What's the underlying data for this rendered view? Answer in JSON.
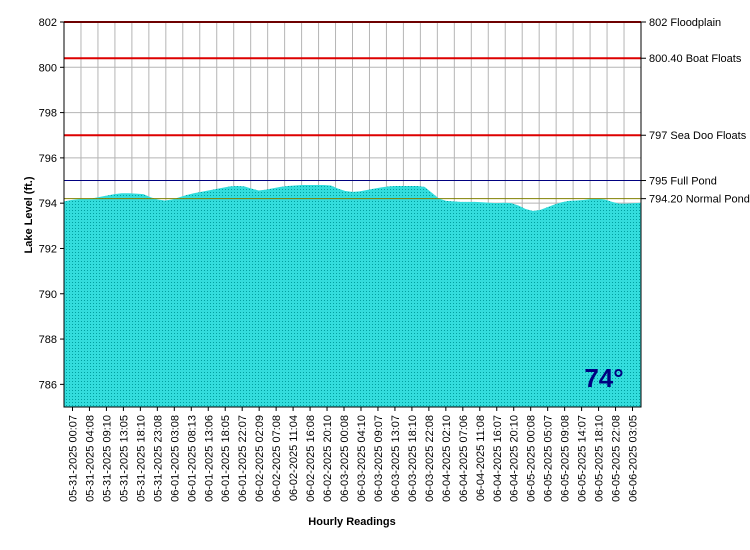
{
  "chart_data": {
    "type": "area",
    "xlabel": "Hourly Readings",
    "ylabel": "Lake Level (ft.)",
    "ylim": [
      785,
      802
    ],
    "yticks": [
      786,
      788,
      790,
      792,
      794,
      796,
      798,
      800,
      802
    ],
    "grid": true,
    "area_color": "#33dddd",
    "area_stipple_color": "#00a0a0",
    "grid_color": "#b5b5b5",
    "x_tick_labels": [
      "05-31-2025 00:07",
      "05-31-2025 04:08",
      "05-31-2025 09:10",
      "05-31-2025 13:05",
      "05-31-2025 18:10",
      "05-31-2025 23:08",
      "06-01-2025 03:08",
      "06-01-2025 08:13",
      "06-01-2025 13:06",
      "06-01-2025 18:05",
      "06-01-2025 22:07",
      "06-02-2025 02:09",
      "06-02-2025 07:08",
      "06-02-2025 11:04",
      "06-02-2025 16:08",
      "06-02-2025 20:10",
      "06-03-2025 00:08",
      "06-03-2025 04:10",
      "06-03-2025 09:07",
      "06-03-2025 13:07",
      "06-03-2025 18:10",
      "06-03-2025 22:08",
      "06-04-2025 02:10",
      "06-04-2025 07:06",
      "06-04-2025 11:08",
      "06-04-2025 16:07",
      "06-04-2025 20:10",
      "06-05-2025 00:08",
      "06-05-2025 05:07",
      "06-05-2025 09:08",
      "06-05-2025 14:07",
      "06-05-2025 18:10",
      "06-05-2025 22:08",
      "06-06-2025 03:05"
    ],
    "series": [
      {
        "values": [
          794.08,
          794.14,
          794.18,
          794.2,
          794.22,
          794.28,
          794.34,
          794.4,
          794.44,
          794.44,
          794.42,
          794.4,
          794.26,
          794.16,
          794.12,
          794.16,
          794.26,
          794.36,
          794.44,
          794.5,
          794.56,
          794.62,
          794.68,
          794.74,
          794.76,
          794.74,
          794.64,
          794.56,
          794.6,
          794.66,
          794.72,
          794.76,
          794.78,
          794.8,
          794.8,
          794.8,
          794.8,
          794.78,
          794.64,
          794.54,
          794.5,
          794.52,
          794.58,
          794.64,
          794.7,
          794.74,
          794.76,
          794.76,
          794.76,
          794.76,
          794.72,
          794.46,
          794.2,
          794.1,
          794.08,
          794.06,
          794.06,
          794.06,
          794.04,
          794.02,
          794.0,
          794.02,
          794.0,
          793.9,
          793.74,
          793.66,
          793.7,
          793.82,
          793.94,
          794.04,
          794.1,
          794.12,
          794.14,
          794.18,
          794.2,
          794.16,
          794.06,
          793.98,
          793.98,
          794.0,
          794.02
        ]
      }
    ],
    "reference_lines": [
      {
        "value": 802,
        "label": "802 Floodplain",
        "color": "#dd0000"
      },
      {
        "value": 800.4,
        "label": "800.40 Boat Floats",
        "color": "#dd0000"
      },
      {
        "value": 797,
        "label": "797 Sea Doo Floats",
        "color": "#dd0000"
      },
      {
        "value": 795,
        "label": "795 Full Pond",
        "color": "#000080"
      },
      {
        "value": 794.2,
        "label": "794.20 Normal Pond",
        "color": "#808000"
      }
    ],
    "temperature": {
      "label": "74°",
      "color": "#000080"
    }
  }
}
